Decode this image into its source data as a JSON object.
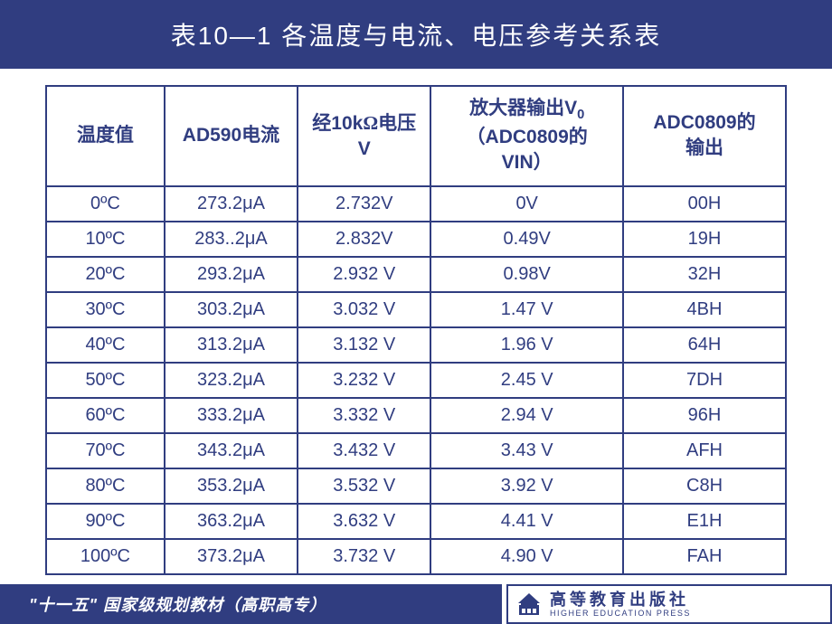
{
  "header": {
    "title": "表10—1  各温度与电流、电压参考关系表"
  },
  "table": {
    "columns": [
      {
        "label": "温度值",
        "class": "col0"
      },
      {
        "label": "AD590电流",
        "class": "col1"
      },
      {
        "label_html": "经10k<span class='omega'>Ω</span>电压<br>V",
        "class": "col2"
      },
      {
        "label_html": "放大器输出V<span class='sub0'>0</span><br>（ADC0809的<br>VIN）",
        "class": "col3"
      },
      {
        "label_html": "ADC0809的<br>输出",
        "class": "col4"
      }
    ],
    "rows": [
      [
        "0ºC",
        "273.2μA",
        "2.732V",
        "0V",
        "00H"
      ],
      [
        "10ºC",
        "283..2μA",
        "2.832V",
        "0.49V",
        "19H"
      ],
      [
        "20ºC",
        "293.2μA",
        "2.932 V",
        "0.98V",
        "32H"
      ],
      [
        "30ºC",
        "303.2μA",
        "3.032 V",
        "1.47 V",
        "4BH"
      ],
      [
        "40ºC",
        "313.2μA",
        "3.132 V",
        "1.96 V",
        "64H"
      ],
      [
        "50ºC",
        "323.2μA",
        "3.232 V",
        "2.45 V",
        "7DH"
      ],
      [
        "60ºC",
        "333.2μA",
        "3.332 V",
        "2.94 V",
        "96H"
      ],
      [
        "70ºC",
        "343.2μA",
        "3.432 V",
        "3.43 V",
        "AFH"
      ],
      [
        "80ºC",
        "353.2μA",
        "3.532 V",
        "3.92 V",
        "C8H"
      ],
      [
        "90ºC",
        "363.2μA",
        "3.632 V",
        "4.41 V",
        "E1H"
      ],
      [
        "100ºC",
        "373.2μA",
        "3.732 V",
        "4.90 V",
        "FAH"
      ]
    ]
  },
  "footer": {
    "left_text": "\"十一五\" 国家级规划教材（高职高专）",
    "logo_cn": "高等教育出版社",
    "logo_en": "HIGHER EDUCATION PRESS"
  },
  "colors": {
    "primary": "#303d80",
    "text_white": "#ffffff",
    "background": "#ffffff"
  }
}
